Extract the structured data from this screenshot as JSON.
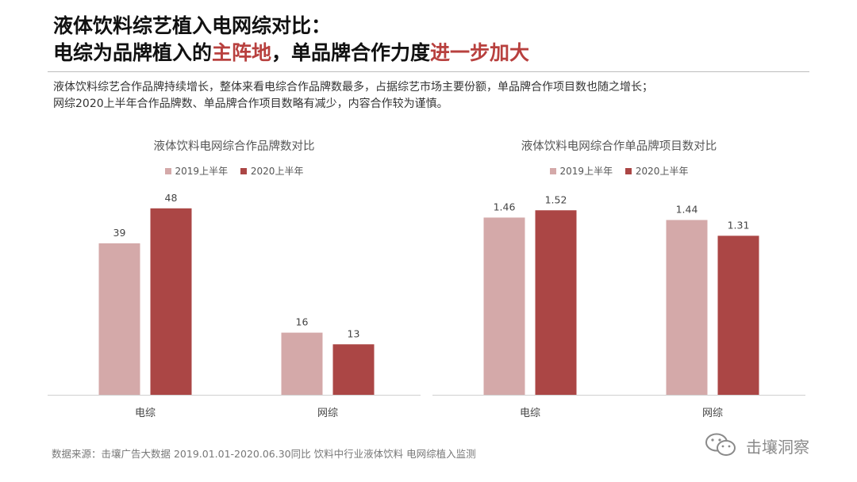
{
  "header": {
    "title_line1": "液体饮料综艺植入电网综对比：",
    "title_line2_part1": "电综为品牌植入的",
    "title_line2_accent1": "主阵地",
    "title_line2_part2": "，单品牌合作力度",
    "title_line2_accent2": "进一步加大",
    "accent_color": "#b8403e"
  },
  "description": {
    "line1": "液体饮料综艺合作品牌持续增长，整体来看电综合作品牌数最多，占据综艺市场主要份额，单品牌合作项目数也随之增长；",
    "line2": "网综2020上半年合作品牌数、单品牌合作项目数略有减少，内容合作较为谨慎。"
  },
  "chart_data": [
    {
      "type": "bar",
      "title": "液体饮料电网综合作品牌数对比",
      "categories": [
        "电综",
        "网综"
      ],
      "series": [
        {
          "name": "2019上半年",
          "values": [
            39,
            16
          ],
          "labels": [
            "39",
            "16"
          ],
          "color": "#d4a9a9"
        },
        {
          "name": "2020上半年",
          "values": [
            48,
            13
          ],
          "labels": [
            "48",
            "13"
          ],
          "color": "#ab4645"
        }
      ],
      "ylim": [
        0,
        50
      ],
      "grid": false,
      "legend": "top-center"
    },
    {
      "type": "bar",
      "title": "液体饮料电网综合作单品牌项目数对比",
      "categories": [
        "电综",
        "网综"
      ],
      "series": [
        {
          "name": "2019上半年",
          "values": [
            1.46,
            1.44
          ],
          "labels": [
            "1.46",
            "1.44"
          ],
          "color": "#d4a9a9"
        },
        {
          "name": "2020上半年",
          "values": [
            1.52,
            1.31
          ],
          "labels": [
            "1.52",
            "1.31"
          ],
          "color": "#ab4645"
        }
      ],
      "ylim": [
        0,
        1.6
      ],
      "grid": false,
      "legend": "top-center"
    }
  ],
  "footer": {
    "source": "数据来源：击壤广告大数据 2019.01.01-2020.06.30同比 饮料中行业液体饮料 电网综植入监测",
    "brand": "击壤洞察",
    "brand_icon": "wechat-icon"
  }
}
